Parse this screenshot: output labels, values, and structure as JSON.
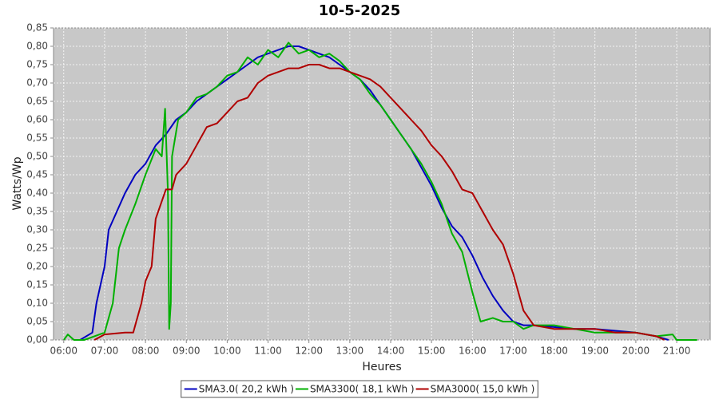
{
  "chart_data": {
    "type": "line",
    "title": "10-5-2025",
    "x_label": "Heures",
    "y_label": "Watts/Wp",
    "xlim": [
      5.75,
      21.82
    ],
    "ylim": [
      0,
      0.85
    ],
    "grid": true,
    "legend": "bottom",
    "xticks": [
      {
        "value": 6,
        "label": "06:00"
      },
      {
        "value": 7,
        "label": "07:00"
      },
      {
        "value": 8,
        "label": "08:00"
      },
      {
        "value": 9,
        "label": "09:00"
      },
      {
        "value": 10,
        "label": "10:00"
      },
      {
        "value": 11,
        "label": "11:00"
      },
      {
        "value": 12,
        "label": "12:00"
      },
      {
        "value": 13,
        "label": "13:00"
      },
      {
        "value": 14,
        "label": "14:00"
      },
      {
        "value": 15,
        "label": "15:00"
      },
      {
        "value": 16,
        "label": "16:00"
      },
      {
        "value": 17,
        "label": "17:00"
      },
      {
        "value": 18,
        "label": "18:00"
      },
      {
        "value": 19,
        "label": "19:00"
      },
      {
        "value": 20,
        "label": "20:00"
      },
      {
        "value": 21,
        "label": "21:00"
      }
    ],
    "yticks": [
      {
        "value": 0,
        "label": "0,00"
      },
      {
        "value": 0.05,
        "label": "0,05"
      },
      {
        "value": 0.1,
        "label": "0,10"
      },
      {
        "value": 0.15,
        "label": "0,15"
      },
      {
        "value": 0.2,
        "label": "0,20"
      },
      {
        "value": 0.25,
        "label": "0,25"
      },
      {
        "value": 0.3,
        "label": "0,30"
      },
      {
        "value": 0.35,
        "label": "0,35"
      },
      {
        "value": 0.4,
        "label": "0,40"
      },
      {
        "value": 0.45,
        "label": "0,45"
      },
      {
        "value": 0.5,
        "label": "0,50"
      },
      {
        "value": 0.55,
        "label": "0,55"
      },
      {
        "value": 0.6,
        "label": "0,60"
      },
      {
        "value": 0.65,
        "label": "0,65"
      },
      {
        "value": 0.7,
        "label": "0,70"
      },
      {
        "value": 0.75,
        "label": "0,75"
      },
      {
        "value": 0.8,
        "label": "0,80"
      },
      {
        "value": 0.85,
        "label": "0,85"
      }
    ],
    "series": [
      {
        "name": "SMA3.0( 20,2 kWh )",
        "color": "#0000c0",
        "x": [
          6.4,
          6.7,
          6.8,
          6.9,
          7.0,
          7.1,
          7.3,
          7.5,
          7.75,
          8.0,
          8.25,
          8.5,
          8.75,
          9.0,
          9.25,
          9.5,
          9.75,
          10.0,
          10.25,
          10.5,
          10.75,
          11.0,
          11.25,
          11.5,
          11.75,
          12.0,
          12.25,
          12.5,
          12.75,
          13.0,
          13.25,
          13.5,
          13.75,
          14.0,
          14.25,
          14.5,
          14.75,
          15.0,
          15.25,
          15.5,
          15.75,
          16.0,
          16.25,
          16.5,
          16.75,
          17.0,
          17.25,
          17.5,
          18.0,
          18.5,
          19.0,
          19.5,
          20.0,
          20.5,
          20.8
        ],
        "values": [
          0,
          0.02,
          0.1,
          0.15,
          0.2,
          0.3,
          0.35,
          0.4,
          0.45,
          0.48,
          0.53,
          0.56,
          0.6,
          0.62,
          0.65,
          0.67,
          0.69,
          0.71,
          0.73,
          0.75,
          0.77,
          0.78,
          0.79,
          0.8,
          0.8,
          0.79,
          0.78,
          0.77,
          0.75,
          0.73,
          0.71,
          0.68,
          0.64,
          0.6,
          0.56,
          0.52,
          0.47,
          0.42,
          0.36,
          0.31,
          0.28,
          0.23,
          0.17,
          0.12,
          0.08,
          0.05,
          0.04,
          0.04,
          0.035,
          0.03,
          0.03,
          0.025,
          0.02,
          0.01,
          0
        ]
      },
      {
        "name": "SMA3300( 18,1 kWh )",
        "color": "#00b000",
        "x": [
          6.0,
          6.1,
          6.25,
          6.5,
          6.75,
          7.0,
          7.2,
          7.35,
          7.5,
          7.75,
          8.0,
          8.25,
          8.4,
          8.48,
          8.55,
          8.58,
          8.62,
          8.65,
          8.8,
          9.0,
          9.25,
          9.5,
          9.75,
          10.0,
          10.25,
          10.5,
          10.75,
          11.0,
          11.25,
          11.5,
          11.75,
          12.0,
          12.25,
          12.5,
          12.75,
          13.0,
          13.25,
          13.5,
          13.75,
          14.0,
          14.25,
          14.5,
          14.75,
          15.0,
          15.25,
          15.5,
          15.75,
          16.0,
          16.2,
          16.5,
          16.75,
          17.0,
          17.25,
          17.5,
          18.0,
          18.5,
          19.0,
          19.5,
          20.0,
          20.5,
          20.9,
          21.0,
          21.5
        ],
        "values": [
          0,
          0.015,
          0,
          0,
          0.01,
          0.02,
          0.1,
          0.25,
          0.3,
          0.37,
          0.45,
          0.52,
          0.5,
          0.63,
          0.4,
          0.03,
          0.1,
          0.5,
          0.6,
          0.62,
          0.66,
          0.67,
          0.69,
          0.72,
          0.73,
          0.77,
          0.75,
          0.79,
          0.77,
          0.81,
          0.78,
          0.79,
          0.77,
          0.78,
          0.76,
          0.73,
          0.71,
          0.67,
          0.64,
          0.6,
          0.56,
          0.52,
          0.48,
          0.43,
          0.37,
          0.29,
          0.24,
          0.13,
          0.05,
          0.06,
          0.05,
          0.05,
          0.03,
          0.04,
          0.04,
          0.03,
          0.02,
          0.02,
          0.02,
          0.01,
          0.015,
          0,
          0
        ]
      },
      {
        "name": "SMA3000( 15,0 kWh )",
        "color": "#b00000",
        "x": [
          6.75,
          7.0,
          7.5,
          7.7,
          7.9,
          8.0,
          8.15,
          8.25,
          8.5,
          8.65,
          8.75,
          9.0,
          9.25,
          9.5,
          9.75,
          10.0,
          10.25,
          10.5,
          10.75,
          11.0,
          11.25,
          11.5,
          11.75,
          12.0,
          12.25,
          12.5,
          12.75,
          13.0,
          13.25,
          13.5,
          13.75,
          14.0,
          14.25,
          14.5,
          14.75,
          15.0,
          15.25,
          15.5,
          15.75,
          16.0,
          16.25,
          16.5,
          16.75,
          17.0,
          17.25,
          17.5,
          18.0,
          18.5,
          19.0,
          19.5,
          20.0,
          20.5,
          20.7
        ],
        "values": [
          0,
          0.015,
          0.02,
          0.02,
          0.1,
          0.16,
          0.2,
          0.33,
          0.41,
          0.41,
          0.45,
          0.48,
          0.53,
          0.58,
          0.59,
          0.62,
          0.65,
          0.66,
          0.7,
          0.72,
          0.73,
          0.74,
          0.74,
          0.75,
          0.75,
          0.74,
          0.74,
          0.73,
          0.72,
          0.71,
          0.69,
          0.66,
          0.63,
          0.6,
          0.57,
          0.53,
          0.5,
          0.46,
          0.41,
          0.4,
          0.35,
          0.3,
          0.26,
          0.18,
          0.08,
          0.04,
          0.03,
          0.03,
          0.03,
          0.02,
          0.02,
          0.01,
          0
        ]
      }
    ]
  }
}
